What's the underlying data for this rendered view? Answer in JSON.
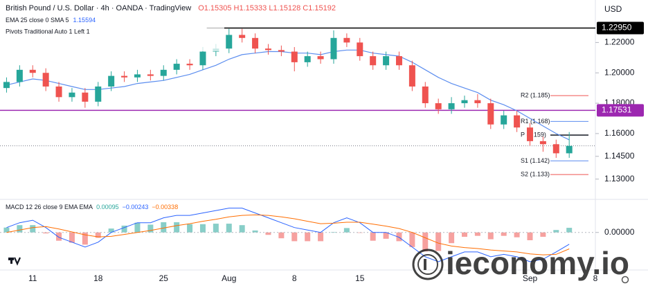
{
  "chart_data": {
    "type": "candlestick",
    "title": "British Pound / U.S. Dollar · 4h · OANDA · TradingView",
    "ohlc_readout": "O1.15305 H1.15333 L1.15128 C1.15192",
    "ema_title": "EMA 25 close 0 SMA 5",
    "ema_readout": "1.15594",
    "pivots_title": "Pivots Traditional Auto 1 Left 1",
    "currency": "USD",
    "watermark": "ieconomy.io",
    "grid": false,
    "up_color": "#26a69a",
    "down_color": "#ef5350",
    "ema_color": "#5b8def",
    "x": [
      0,
      1,
      2,
      3,
      4,
      5,
      6,
      7,
      8,
      9,
      10,
      11,
      12,
      13,
      14,
      15,
      16,
      17,
      18,
      19,
      20,
      21,
      22,
      23,
      24,
      25,
      26,
      27,
      28,
      29,
      30,
      31,
      32,
      33,
      34,
      35,
      36,
      37,
      38,
      39,
      40,
      41,
      42,
      43
    ],
    "xlim": [
      -0.5,
      45
    ],
    "xticks": [
      {
        "value": 2,
        "label": "11"
      },
      {
        "value": 7,
        "label": "18"
      },
      {
        "value": 12,
        "label": "25"
      },
      {
        "value": 17,
        "label": "Aug"
      },
      {
        "value": 22,
        "label": "8"
      },
      {
        "value": 27,
        "label": "15"
      },
      {
        "value": 40,
        "label": "Sep"
      },
      {
        "value": 45,
        "label": "8"
      }
    ],
    "open": [
      1.19,
      1.194,
      1.202,
      1.2,
      1.191,
      1.184,
      1.187,
      1.181,
      1.191,
      1.198,
      1.197,
      1.199,
      1.198,
      1.202,
      1.206,
      1.205,
      1.214,
      1.216,
      1.225,
      1.223,
      1.216,
      1.215,
      1.214,
      1.207,
      1.211,
      1.209,
      1.223,
      1.22,
      1.211,
      1.205,
      1.211,
      1.205,
      1.191,
      1.18,
      1.176,
      1.18,
      1.182,
      1.18,
      1.166,
      1.172,
      1.164,
      1.155,
      1.153,
      1.147
    ],
    "high": [
      1.197,
      1.205,
      1.205,
      1.203,
      1.194,
      1.19,
      1.19,
      1.194,
      1.201,
      1.201,
      1.202,
      1.202,
      1.205,
      1.209,
      1.209,
      1.217,
      1.219,
      1.229,
      1.229,
      1.226,
      1.219,
      1.218,
      1.217,
      1.214,
      1.214,
      1.228,
      1.226,
      1.223,
      1.214,
      1.214,
      1.214,
      1.208,
      1.194,
      1.183,
      1.184,
      1.185,
      1.186,
      1.183,
      1.175,
      1.175,
      1.167,
      1.158,
      1.156,
      1.161
    ],
    "low": [
      1.187,
      1.191,
      1.197,
      1.188,
      1.181,
      1.181,
      1.177,
      1.178,
      1.188,
      1.194,
      1.194,
      1.195,
      1.195,
      1.199,
      1.202,
      1.202,
      1.211,
      1.213,
      1.22,
      1.213,
      1.212,
      1.211,
      1.201,
      1.204,
      1.206,
      1.206,
      1.217,
      1.208,
      1.202,
      1.202,
      1.202,
      1.188,
      1.177,
      1.173,
      1.173,
      1.177,
      1.177,
      1.163,
      1.163,
      1.161,
      1.152,
      1.148,
      1.144,
      1.144
    ],
    "close": [
      1.194,
      1.202,
      1.2,
      1.191,
      1.184,
      1.187,
      1.181,
      1.191,
      1.198,
      1.197,
      1.199,
      1.198,
      1.202,
      1.206,
      1.205,
      1.214,
      1.216,
      1.225,
      1.223,
      1.216,
      1.215,
      1.214,
      1.207,
      1.211,
      1.209,
      1.223,
      1.22,
      1.211,
      1.205,
      1.211,
      1.205,
      1.191,
      1.18,
      1.176,
      1.18,
      1.182,
      1.18,
      1.166,
      1.172,
      1.164,
      1.155,
      1.153,
      1.147,
      1.1519
    ],
    "ema": [
      1.192,
      1.194,
      1.196,
      1.195,
      1.193,
      1.191,
      1.189,
      1.189,
      1.19,
      1.191,
      1.193,
      1.194,
      1.195,
      1.197,
      1.199,
      1.202,
      1.205,
      1.209,
      1.212,
      1.213,
      1.214,
      1.214,
      1.213,
      1.213,
      1.212,
      1.214,
      1.215,
      1.215,
      1.213,
      1.212,
      1.211,
      1.207,
      1.202,
      1.197,
      1.193,
      1.19,
      1.187,
      1.182,
      1.179,
      1.175,
      1.17,
      1.165,
      1.16,
      1.1559
    ],
    "ylim": [
      1.118,
      1.248
    ],
    "yticks": [
      {
        "value": 1.22,
        "label": "1.22000"
      },
      {
        "value": 1.2,
        "label": "1.20000"
      },
      {
        "value": 1.18,
        "label": "1.18000"
      },
      {
        "value": 1.16,
        "label": "1.16000"
      },
      {
        "value": 1.145,
        "label": "1.14500"
      },
      {
        "value": 1.13,
        "label": "1.13000"
      }
    ],
    "hlines": [
      {
        "value": 1.2295,
        "label": "1.22950",
        "color": "#000000"
      },
      {
        "value": 1.17531,
        "label": "1.17531",
        "color": "#9c27b0"
      }
    ],
    "pivots": [
      {
        "value": 1.185,
        "label": "R2 (1.185)",
        "color": "#ef5350"
      },
      {
        "value": 1.168,
        "label": "R1 (1.168)",
        "color": "#5b8def"
      },
      {
        "value": 1.159,
        "label": "P (1.159)",
        "color": "#131722"
      },
      {
        "value": 1.142,
        "label": "S1 (1.142)",
        "color": "#5b8def"
      },
      {
        "value": 1.133,
        "label": "S2 (1.133)",
        "color": "#ef5350"
      }
    ],
    "macd": {
      "title": "MACD 12 26 close 9 EMA EMA",
      "readouts": [
        {
          "text": "0.00095",
          "color": "#26a69a"
        },
        {
          "text": "−0.00243",
          "color": "#2962ff"
        },
        {
          "text": "−0.00338",
          "color": "#ff6d00"
        }
      ],
      "ylim": [
        -0.007,
        0.0065
      ],
      "yticks": [
        {
          "value": 0,
          "label": "0.00000"
        }
      ],
      "histogram": [
        0.001,
        0.0015,
        0.0015,
        -0.0002,
        -0.0017,
        -0.0021,
        -0.0025,
        -0.0011,
        0.0008,
        0.0014,
        0.002,
        0.0016,
        0.0021,
        0.0021,
        0.0017,
        0.0017,
        0.0018,
        0.0018,
        0.0015,
        0.0004,
        -0.0005,
        -0.0012,
        -0.0018,
        -0.0018,
        -0.0018,
        0.0001,
        0.0009,
        -0.0001,
        -0.0017,
        -0.0013,
        -0.0018,
        -0.003,
        -0.0039,
        -0.0038,
        -0.0022,
        -0.0009,
        -0.0007,
        -0.0014,
        -0.0007,
        -0.001,
        -0.0016,
        -0.0009,
        0.0005,
        0.00095
      ],
      "macd_line": [
        0.001,
        0.002,
        0.0025,
        0.001,
        -0.001,
        -0.002,
        -0.003,
        -0.002,
        0.0,
        0.001,
        0.002,
        0.002,
        0.003,
        0.0035,
        0.0035,
        0.004,
        0.0045,
        0.005,
        0.005,
        0.004,
        0.003,
        0.002,
        0.001,
        0.0005,
        0.0,
        0.002,
        0.003,
        0.002,
        0.0,
        0.0,
        -0.001,
        -0.003,
        -0.005,
        -0.006,
        -0.005,
        -0.004,
        -0.004,
        -0.005,
        -0.0045,
        -0.005,
        -0.006,
        -0.0055,
        -0.004,
        -0.00243
      ],
      "signal_line": [
        0.0,
        0.0005,
        0.001,
        0.0012,
        0.0007,
        0.0001,
        -0.0005,
        -0.0009,
        -0.0008,
        -0.0004,
        0.0,
        0.0004,
        0.0009,
        0.0014,
        0.0018,
        0.0023,
        0.0027,
        0.0032,
        0.0035,
        0.0036,
        0.0035,
        0.0032,
        0.0028,
        0.0023,
        0.0018,
        0.0019,
        0.0021,
        0.0021,
        0.0017,
        0.0013,
        0.0008,
        0.0,
        -0.0011,
        -0.0022,
        -0.0028,
        -0.0031,
        -0.0033,
        -0.0036,
        -0.0038,
        -0.004,
        -0.0044,
        -0.0046,
        -0.0045,
        -0.00338
      ],
      "hist_up_color": "#26a69a",
      "hist_down_color": "#ef5350",
      "macd_color": "#2962ff",
      "signal_color": "#ff6d00"
    }
  }
}
